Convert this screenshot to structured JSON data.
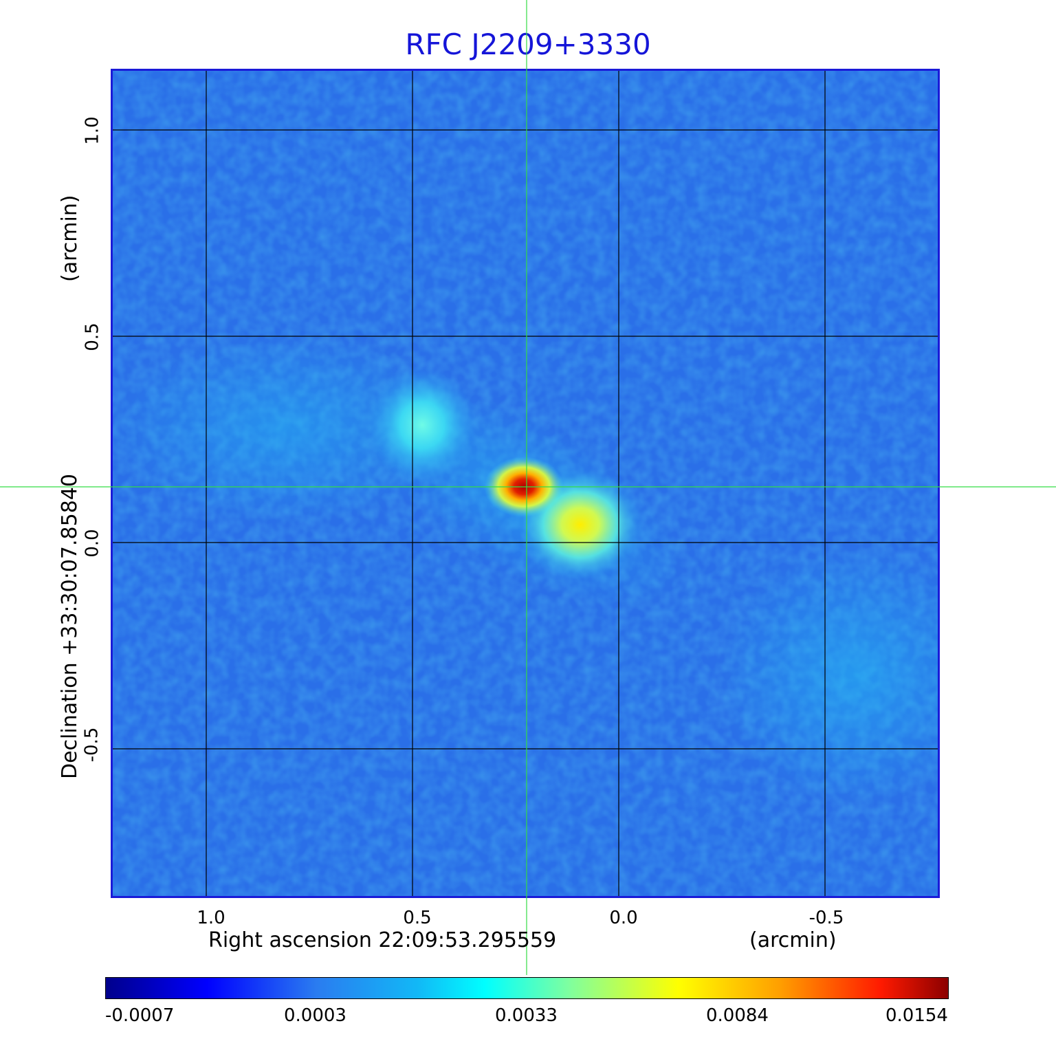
{
  "image": {
    "title": "RFC J2209+3330",
    "x_axis": {
      "label": "Right ascension  22:09:53.295559",
      "unit": "(arcmin)",
      "ticks": [
        "1.0",
        "0.5",
        "0.0",
        "-0.5"
      ]
    },
    "y_axis": {
      "label": "Declination  +33:30:07.85840",
      "unit": "(arcmin)",
      "ticks": [
        "1.0",
        "0.5",
        "0.0",
        "-0.5"
      ]
    },
    "colorbar": {
      "labels": [
        "-0.0007",
        "0.0003",
        "0.0033",
        "0.0084",
        "0.0154"
      ]
    },
    "colors": {
      "frame": "#1a1ad8",
      "title": "#1515d8",
      "crosshair": "#33dd44",
      "grid": "#000000"
    }
  }
}
